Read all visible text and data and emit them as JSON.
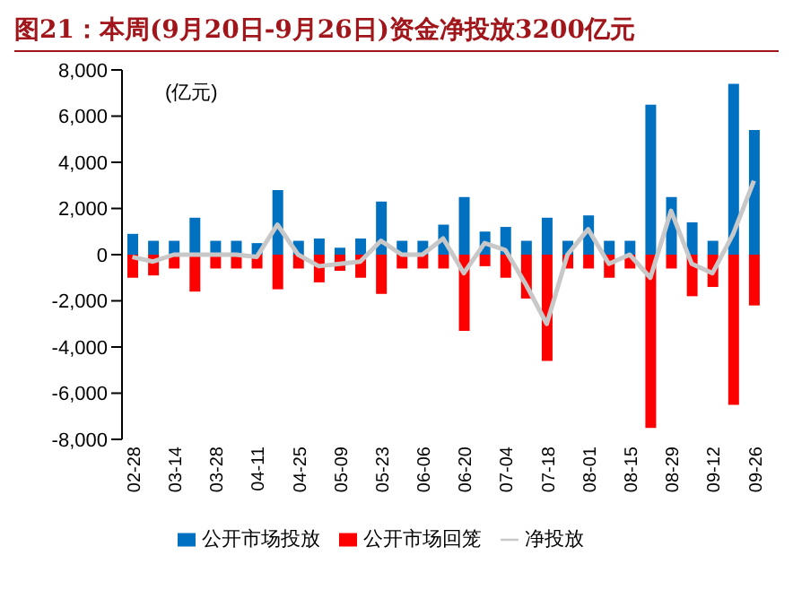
{
  "chart_data": {
    "type": "bar",
    "title": "图21：本周(9月20日-9月26日)资金净投放3200亿元",
    "ylabel": "(亿元)",
    "categories": [
      "02-28",
      null,
      "03-14",
      null,
      "03-28",
      null,
      "04-11",
      null,
      "04-25",
      null,
      "05-09",
      null,
      "05-23",
      null,
      "06-06",
      null,
      "06-20",
      null,
      "07-04",
      null,
      "07-18",
      null,
      "08-01",
      null,
      "08-15",
      null,
      "08-29",
      null,
      "09-12",
      null,
      "09-26"
    ],
    "series": [
      {
        "name": "公开市场投放",
        "color": "#0070c0",
        "values": [
          900,
          600,
          600,
          1600,
          600,
          600,
          500,
          2800,
          600,
          700,
          300,
          700,
          2300,
          600,
          600,
          1300,
          2500,
          1000,
          1200,
          600,
          1600,
          600,
          1700,
          600,
          600,
          6500,
          2500,
          1400,
          600,
          7400,
          5400
        ]
      },
      {
        "name": "公开市场回笼",
        "color": "#ff0000",
        "values": [
          -1000,
          -900,
          -600,
          -1600,
          -600,
          -600,
          -600,
          -1500,
          -600,
          -1200,
          -700,
          -1000,
          -1700,
          -600,
          -600,
          -600,
          -3300,
          -500,
          -1000,
          -1900,
          -4600,
          -600,
          -600,
          -1000,
          -600,
          -7500,
          -600,
          -1800,
          -1400,
          -6500,
          -2200
        ]
      },
      {
        "name": "净投放",
        "type": "line",
        "color": "#c8c8c8",
        "values": [
          -100,
          -300,
          0,
          0,
          0,
          0,
          -100,
          1300,
          0,
          -500,
          -400,
          -300,
          600,
          0,
          0,
          700,
          -800,
          500,
          200,
          -1300,
          -3000,
          0,
          1100,
          -400,
          0,
          -1000,
          1900,
          -400,
          -800,
          900,
          3200
        ]
      }
    ],
    "stacked": true,
    "ylim": [
      -8000,
      8000
    ],
    "yticks": [
      {
        "value": -8000,
        "label": "-8,000"
      },
      {
        "value": -6000,
        "label": "-6,000"
      },
      {
        "value": -4000,
        "label": "-4,000"
      },
      {
        "value": -2000,
        "label": "-2,000"
      },
      0,
      {
        "value": 2000,
        "label": "2,000"
      },
      {
        "value": 4000,
        "label": "4,000"
      },
      {
        "value": 6000,
        "label": "6,000"
      },
      {
        "value": 8000,
        "label": "8,000"
      }
    ],
    "grid": false,
    "legend": "bottom",
    "marker": "none",
    "line_style": "solid"
  }
}
